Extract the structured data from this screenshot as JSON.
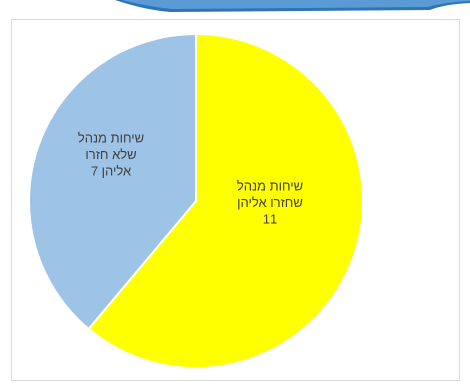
{
  "chart_data": {
    "type": "pie",
    "title": "",
    "slices": [
      {
        "label_lines": [
          "שיחות מנהל",
          "שחזרו אליהן"
        ],
        "value": 11,
        "value_text": "11",
        "color": "#ffff00"
      },
      {
        "label_lines": [
          "שיחות מנהל",
          "שלא חזרו",
          "אליהן"
        ],
        "value": 7,
        "value_text": "7",
        "color": "#9dc3e6"
      }
    ],
    "legend": "none"
  },
  "colors": {
    "slice_border": "#ffffff",
    "frame_border": "#d9d9d9",
    "label_text": "#404040",
    "header_blue": "#2e75b6"
  }
}
